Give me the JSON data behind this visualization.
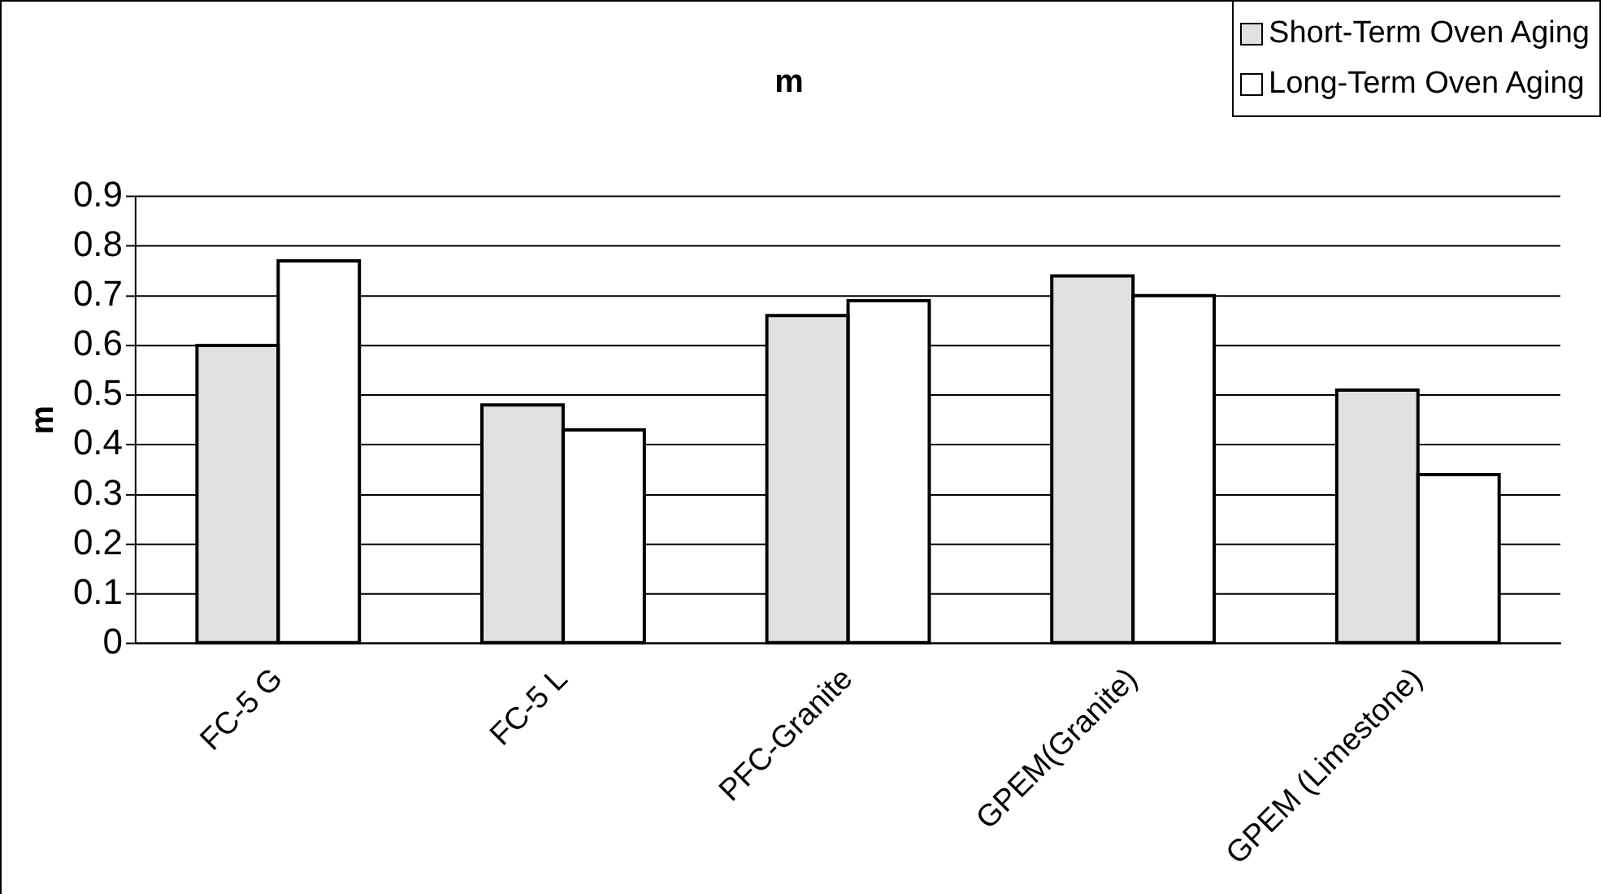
{
  "chart_data": {
    "type": "bar",
    "title": "m",
    "ylabel": "m",
    "categories": [
      "FC-5 G",
      "FC-5 L",
      "PFC-Granite",
      "GPEM(Granite)",
      "GPEM (Limestone)"
    ],
    "series": [
      {
        "name": "Short-Term Oven Aging",
        "color": "#e0e0e0",
        "values": [
          0.6,
          0.48,
          0.66,
          0.74,
          0.51
        ]
      },
      {
        "name": "Long-Term Oven Aging",
        "color": "#ffffff",
        "values": [
          0.77,
          0.43,
          0.69,
          0.7,
          0.34
        ]
      }
    ],
    "ylim": [
      0,
      0.9
    ],
    "yticks": [
      0,
      0.1,
      0.2,
      0.3,
      0.4,
      0.5,
      0.6,
      0.7,
      0.8,
      0.9
    ],
    "grid": "y",
    "legend": "top right"
  }
}
